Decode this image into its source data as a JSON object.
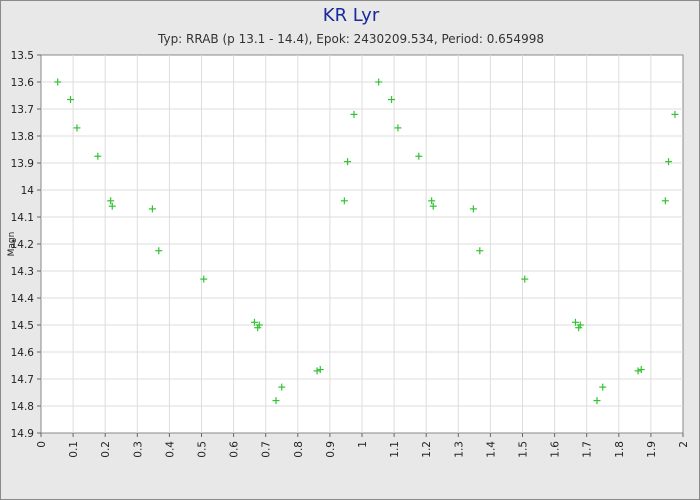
{
  "chart_data": {
    "type": "scatter",
    "title": "KR Lyr",
    "subtitle": "Typ: RRAB (p 13.1 - 14.4), Epok: 2430209.534, Period: 0.654998",
    "xlabel": "",
    "ylabel": "Magn",
    "xlim": [
      0,
      2
    ],
    "ylim": [
      13.5,
      14.9
    ],
    "y_inverted": true,
    "grid": true,
    "legend": "none",
    "marker": "plus",
    "colors": {
      "marker": "#33c233",
      "background": "#e8e8e8",
      "plot_area": "#ffffff",
      "grid": "#dddddd",
      "title": "#1a2a9c"
    },
    "x_ticks": [
      "0",
      "0.1",
      "0.2",
      "0.3",
      "0.4",
      "0.5",
      "0.6",
      "0.7",
      "0.8",
      "0.9",
      "1",
      "1.1",
      "1.2",
      "1.3",
      "1.4",
      "1.5",
      "1.6",
      "1.7",
      "1.8",
      "1.9",
      "2"
    ],
    "y_ticks": [
      "13.5",
      "13.6",
      "13.7",
      "13.8",
      "13.9",
      "14",
      "14.1",
      "14.2",
      "14.3",
      "14.4",
      "14.5",
      "14.6",
      "14.7",
      "14.8",
      "14.9"
    ],
    "points": [
      {
        "x": 0.052,
        "y": 13.6
      },
      {
        "x": 0.092,
        "y": 13.665
      },
      {
        "x": 0.112,
        "y": 13.77
      },
      {
        "x": 0.177,
        "y": 13.875
      },
      {
        "x": 0.217,
        "y": 14.04
      },
      {
        "x": 0.222,
        "y": 14.06
      },
      {
        "x": 0.347,
        "y": 14.07
      },
      {
        "x": 0.367,
        "y": 14.225
      },
      {
        "x": 0.507,
        "y": 14.33
      },
      {
        "x": 0.665,
        "y": 14.49
      },
      {
        "x": 0.675,
        "y": 14.51
      },
      {
        "x": 0.68,
        "y": 14.5
      },
      {
        "x": 0.732,
        "y": 14.78
      },
      {
        "x": 0.75,
        "y": 14.73
      },
      {
        "x": 0.86,
        "y": 14.67
      },
      {
        "x": 0.87,
        "y": 14.665
      },
      {
        "x": 0.945,
        "y": 14.04
      },
      {
        "x": 0.955,
        "y": 13.895
      },
      {
        "x": 0.975,
        "y": 13.72
      },
      {
        "x": 1.052,
        "y": 13.6
      },
      {
        "x": 1.092,
        "y": 13.665
      },
      {
        "x": 1.112,
        "y": 13.77
      },
      {
        "x": 1.177,
        "y": 13.875
      },
      {
        "x": 1.217,
        "y": 14.04
      },
      {
        "x": 1.222,
        "y": 14.06
      },
      {
        "x": 1.347,
        "y": 14.07
      },
      {
        "x": 1.367,
        "y": 14.225
      },
      {
        "x": 1.507,
        "y": 14.33
      },
      {
        "x": 1.665,
        "y": 14.49
      },
      {
        "x": 1.675,
        "y": 14.51
      },
      {
        "x": 1.68,
        "y": 14.5
      },
      {
        "x": 1.732,
        "y": 14.78
      },
      {
        "x": 1.75,
        "y": 14.73
      },
      {
        "x": 1.86,
        "y": 14.67
      },
      {
        "x": 1.87,
        "y": 14.665
      },
      {
        "x": 1.945,
        "y": 14.04
      },
      {
        "x": 1.955,
        "y": 13.895
      },
      {
        "x": 1.975,
        "y": 13.72
      }
    ]
  }
}
